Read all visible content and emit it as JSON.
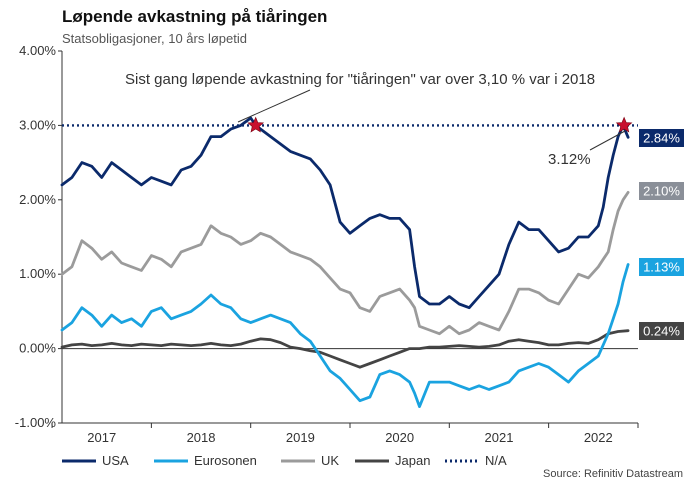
{
  "chart_data": {
    "type": "line",
    "title": "Løpende avkastning på tiåringen",
    "subtitle": "Statsobligasjoner, 10 års løpetid",
    "ylim": [
      -1.0,
      4.0
    ],
    "yticks": [
      "-1.00%",
      "0.00%",
      "1.00%",
      "2.00%",
      "3.00%",
      "4.00%"
    ],
    "ytick_values": [
      -1,
      0,
      1,
      2,
      3,
      4
    ],
    "xlim": [
      2016.6,
      2022.4
    ],
    "xticks": [
      "2017",
      "2018",
      "2019",
      "2020",
      "2021",
      "2022"
    ],
    "xtick_values": [
      2017,
      2018,
      2019,
      2020,
      2021,
      2022
    ],
    "grid": false,
    "legend_position": "bottom",
    "threshold": {
      "name": "N/A",
      "value": 3.0,
      "color": "#0b2a6b"
    },
    "annotations": {
      "main": "Sist gang løpende avkastning for \"tiåringen\" var over 3,10 % var i 2018",
      "latest": "3.12%"
    },
    "markers": [
      {
        "x": 2018.55,
        "y": 3.0,
        "color": "#c8102e"
      },
      {
        "x": 2022.26,
        "y": 3.0,
        "color": "#c8102e"
      }
    ],
    "source": "Source: Refinitiv Datastream",
    "series": [
      {
        "name": "USA",
        "color": "#0b2a6b",
        "end_label": "2.84%",
        "x": [
          2016.6,
          2016.7,
          2016.8,
          2016.9,
          2017.0,
          2017.1,
          2017.2,
          2017.3,
          2017.4,
          2017.5,
          2017.6,
          2017.7,
          2017.8,
          2017.9,
          2018.0,
          2018.1,
          2018.2,
          2018.3,
          2018.4,
          2018.5,
          2018.55,
          2018.6,
          2018.7,
          2018.8,
          2018.9,
          2019.0,
          2019.1,
          2019.2,
          2019.3,
          2019.4,
          2019.5,
          2019.6,
          2019.7,
          2019.8,
          2019.9,
          2020.0,
          2020.1,
          2020.15,
          2020.2,
          2020.3,
          2020.4,
          2020.5,
          2020.6,
          2020.7,
          2020.8,
          2020.9,
          2021.0,
          2021.1,
          2021.2,
          2021.3,
          2021.4,
          2021.5,
          2021.6,
          2021.7,
          2021.8,
          2021.9,
          2022.0,
          2022.05,
          2022.1,
          2022.15,
          2022.2,
          2022.25,
          2022.3
        ],
        "values": [
          2.2,
          2.3,
          2.5,
          2.45,
          2.3,
          2.5,
          2.4,
          2.3,
          2.2,
          2.3,
          2.25,
          2.2,
          2.4,
          2.45,
          2.6,
          2.85,
          2.85,
          2.95,
          3.0,
          3.1,
          3.0,
          2.95,
          2.85,
          2.75,
          2.65,
          2.6,
          2.55,
          2.4,
          2.2,
          1.7,
          1.55,
          1.65,
          1.75,
          1.8,
          1.75,
          1.75,
          1.6,
          1.1,
          0.7,
          0.6,
          0.6,
          0.7,
          0.6,
          0.55,
          0.7,
          0.85,
          1.0,
          1.4,
          1.7,
          1.6,
          1.6,
          1.45,
          1.3,
          1.35,
          1.5,
          1.5,
          1.65,
          1.9,
          2.3,
          2.6,
          2.85,
          3.0,
          2.84
        ]
      },
      {
        "name": "Eurosonen",
        "color": "#1aa3e0",
        "end_label": "1.13%",
        "x": [
          2016.6,
          2016.7,
          2016.8,
          2016.9,
          2017.0,
          2017.1,
          2017.2,
          2017.3,
          2017.4,
          2017.5,
          2017.6,
          2017.7,
          2017.8,
          2017.9,
          2018.0,
          2018.1,
          2018.2,
          2018.3,
          2018.4,
          2018.5,
          2018.6,
          2018.7,
          2018.8,
          2018.9,
          2019.0,
          2019.1,
          2019.2,
          2019.3,
          2019.4,
          2019.5,
          2019.6,
          2019.7,
          2019.8,
          2019.9,
          2020.0,
          2020.1,
          2020.15,
          2020.2,
          2020.3,
          2020.4,
          2020.5,
          2020.6,
          2020.7,
          2020.8,
          2020.9,
          2021.0,
          2021.1,
          2021.2,
          2021.3,
          2021.4,
          2021.5,
          2021.6,
          2021.7,
          2021.8,
          2021.9,
          2022.0,
          2022.05,
          2022.1,
          2022.15,
          2022.2,
          2022.25,
          2022.3
        ],
        "values": [
          0.25,
          0.35,
          0.55,
          0.45,
          0.3,
          0.45,
          0.35,
          0.4,
          0.3,
          0.5,
          0.55,
          0.4,
          0.45,
          0.5,
          0.6,
          0.72,
          0.6,
          0.55,
          0.4,
          0.35,
          0.4,
          0.45,
          0.4,
          0.35,
          0.2,
          0.1,
          -0.1,
          -0.3,
          -0.4,
          -0.55,
          -0.7,
          -0.65,
          -0.35,
          -0.3,
          -0.35,
          -0.45,
          -0.6,
          -0.78,
          -0.45,
          -0.45,
          -0.45,
          -0.5,
          -0.55,
          -0.5,
          -0.55,
          -0.5,
          -0.45,
          -0.3,
          -0.25,
          -0.2,
          -0.25,
          -0.35,
          -0.45,
          -0.3,
          -0.2,
          -0.1,
          0.05,
          0.2,
          0.4,
          0.6,
          0.9,
          1.13
        ]
      },
      {
        "name": "UK",
        "color": "#9b9b9b",
        "end_label": "2.10%",
        "x": [
          2016.6,
          2016.7,
          2016.8,
          2016.9,
          2017.0,
          2017.1,
          2017.2,
          2017.3,
          2017.4,
          2017.5,
          2017.6,
          2017.7,
          2017.8,
          2017.9,
          2018.0,
          2018.1,
          2018.2,
          2018.3,
          2018.4,
          2018.5,
          2018.6,
          2018.7,
          2018.8,
          2018.9,
          2019.0,
          2019.1,
          2019.2,
          2019.3,
          2019.4,
          2019.5,
          2019.6,
          2019.7,
          2019.8,
          2019.9,
          2020.0,
          2020.1,
          2020.15,
          2020.2,
          2020.3,
          2020.4,
          2020.5,
          2020.6,
          2020.7,
          2020.8,
          2020.9,
          2021.0,
          2021.1,
          2021.2,
          2021.3,
          2021.4,
          2021.5,
          2021.6,
          2021.7,
          2021.8,
          2021.9,
          2022.0,
          2022.05,
          2022.1,
          2022.15,
          2022.2,
          2022.25,
          2022.3
        ],
        "values": [
          1.0,
          1.1,
          1.45,
          1.35,
          1.2,
          1.3,
          1.15,
          1.1,
          1.05,
          1.25,
          1.2,
          1.1,
          1.3,
          1.35,
          1.4,
          1.65,
          1.55,
          1.5,
          1.4,
          1.45,
          1.55,
          1.5,
          1.4,
          1.3,
          1.25,
          1.2,
          1.1,
          0.95,
          0.8,
          0.75,
          0.55,
          0.5,
          0.7,
          0.75,
          0.8,
          0.65,
          0.55,
          0.3,
          0.25,
          0.2,
          0.3,
          0.2,
          0.25,
          0.35,
          0.3,
          0.25,
          0.5,
          0.8,
          0.8,
          0.75,
          0.65,
          0.6,
          0.8,
          1.0,
          0.95,
          1.1,
          1.2,
          1.3,
          1.6,
          1.85,
          2.0,
          2.1
        ]
      },
      {
        "name": "Japan",
        "color": "#444444",
        "end_label": "0.24%",
        "x": [
          2016.6,
          2016.7,
          2016.8,
          2016.9,
          2017.0,
          2017.1,
          2017.2,
          2017.3,
          2017.4,
          2017.5,
          2017.6,
          2017.7,
          2017.8,
          2017.9,
          2018.0,
          2018.1,
          2018.2,
          2018.3,
          2018.4,
          2018.5,
          2018.6,
          2018.7,
          2018.8,
          2018.9,
          2019.0,
          2019.1,
          2019.2,
          2019.3,
          2019.4,
          2019.5,
          2019.6,
          2019.7,
          2019.8,
          2019.9,
          2020.0,
          2020.1,
          2020.2,
          2020.3,
          2020.4,
          2020.5,
          2020.6,
          2020.7,
          2020.8,
          2020.9,
          2021.0,
          2021.1,
          2021.2,
          2021.3,
          2021.4,
          2021.5,
          2021.6,
          2021.7,
          2021.8,
          2021.9,
          2022.0,
          2022.1,
          2022.2,
          2022.3
        ],
        "values": [
          0.02,
          0.05,
          0.06,
          0.04,
          0.05,
          0.07,
          0.05,
          0.04,
          0.06,
          0.05,
          0.04,
          0.06,
          0.05,
          0.04,
          0.05,
          0.07,
          0.05,
          0.04,
          0.06,
          0.1,
          0.13,
          0.12,
          0.08,
          0.02,
          0.0,
          -0.03,
          -0.05,
          -0.1,
          -0.15,
          -0.2,
          -0.25,
          -0.2,
          -0.15,
          -0.1,
          -0.05,
          0.0,
          0.0,
          0.02,
          0.02,
          0.03,
          0.04,
          0.03,
          0.02,
          0.03,
          0.05,
          0.1,
          0.12,
          0.1,
          0.08,
          0.05,
          0.05,
          0.07,
          0.08,
          0.07,
          0.12,
          0.2,
          0.23,
          0.24
        ]
      }
    ]
  }
}
